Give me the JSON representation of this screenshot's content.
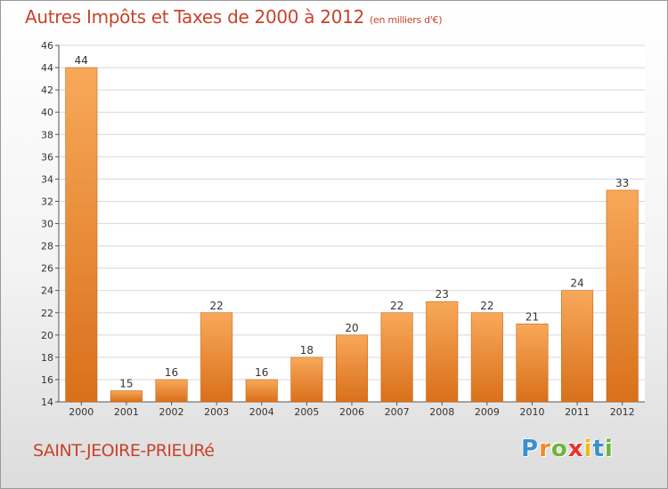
{
  "chart_data": {
    "type": "bar",
    "title": "Autres Impôts et Taxes de 2000 à 2012",
    "subtitle": "(en milliers d'€)",
    "categories": [
      "2000",
      "2001",
      "2002",
      "2003",
      "2004",
      "2005",
      "2006",
      "2007",
      "2008",
      "2009",
      "2010",
      "2011",
      "2012"
    ],
    "values": [
      44,
      15,
      16,
      22,
      16,
      18,
      20,
      22,
      23,
      22,
      21,
      24,
      33
    ],
    "ylim": [
      14,
      46
    ],
    "yticks": [
      14,
      16,
      18,
      20,
      22,
      24,
      26,
      28,
      30,
      32,
      34,
      36,
      38,
      40,
      42,
      44,
      46
    ],
    "grid": true,
    "bar_color": "#f08a2a",
    "xlabel": "",
    "ylabel": ""
  },
  "footer": {
    "location": "SAINT-JEOIRE-PRIEURé",
    "logo_letters": [
      "P",
      "r",
      "o",
      "x",
      "i",
      "t",
      "i"
    ],
    "logo_colors": [
      "#3a8fd0",
      "#f08a2a",
      "#6cb43f",
      "#e8322a",
      "#f0b818",
      "#3a8fd0",
      "#6cb43f"
    ]
  }
}
